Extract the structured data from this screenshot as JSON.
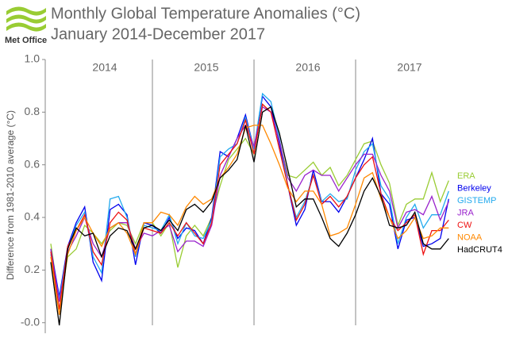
{
  "logo": "Met Office",
  "chart_data": {
    "type": "line",
    "title": "Monthly Global Temperature Anomalies (°C)",
    "subtitle": "January 2014-December 2017",
    "y_label": "Difference from 1981-2010 average (°C)",
    "year_labels": [
      "2014",
      "2015",
      "2016",
      "2017"
    ],
    "ylim": [
      -0.04,
      1.0
    ],
    "yticks": [
      {
        "value": 1.0,
        "label": "1.0"
      },
      0.8,
      0.6,
      0.4,
      0.2,
      {
        "value": 0,
        "label": "-0.0"
      }
    ],
    "legend": "right",
    "series": [
      {
        "name": "ERA",
        "color": "#99cc33",
        "values": [
          0.3,
          0.08,
          0.25,
          0.28,
          0.37,
          0.34,
          0.3,
          0.35,
          0.38,
          0.37,
          0.3,
          0.38,
          0.38,
          0.33,
          0.38,
          0.21,
          0.33,
          0.37,
          0.33,
          0.4,
          0.52,
          0.62,
          0.66,
          0.7,
          0.64,
          0.83,
          0.8,
          0.69,
          0.56,
          0.55,
          0.58,
          0.61,
          0.56,
          0.59,
          0.52,
          0.56,
          0.62,
          0.68,
          0.69,
          0.6,
          0.53,
          0.37,
          0.45,
          0.47,
          0.47,
          0.57,
          0.46,
          0.54
        ]
      },
      {
        "name": "Berkeley",
        "color": "#0000ee",
        "values": [
          0.28,
          0.1,
          0.29,
          0.38,
          0.44,
          0.23,
          0.16,
          0.43,
          0.45,
          0.41,
          0.22,
          0.38,
          0.37,
          0.34,
          0.4,
          0.32,
          0.36,
          0.35,
          0.3,
          0.4,
          0.65,
          0.63,
          0.7,
          0.79,
          0.66,
          0.86,
          0.82,
          0.68,
          0.52,
          0.37,
          0.43,
          0.58,
          0.46,
          0.46,
          0.42,
          0.48,
          0.55,
          0.62,
          0.7,
          0.49,
          0.45,
          0.28,
          0.39,
          0.4,
          0.29,
          0.3,
          0.32,
          0.47
        ]
      },
      {
        "name": "GISTEMP",
        "color": "#22aaee",
        "values": [
          0.26,
          0.09,
          0.28,
          0.37,
          0.42,
          0.25,
          0.19,
          0.47,
          0.48,
          0.4,
          0.25,
          0.37,
          0.36,
          0.35,
          0.41,
          0.3,
          0.38,
          0.33,
          0.32,
          0.39,
          0.63,
          0.66,
          0.68,
          0.78,
          0.66,
          0.87,
          0.84,
          0.7,
          0.52,
          0.4,
          0.46,
          0.56,
          0.46,
          0.49,
          0.46,
          0.47,
          0.58,
          0.65,
          0.68,
          0.52,
          0.47,
          0.3,
          0.4,
          0.45,
          0.36,
          0.41,
          0.41,
          0.5
        ]
      },
      {
        "name": "JRA",
        "color": "#9922cc",
        "values": [
          0.28,
          0.08,
          0.27,
          0.33,
          0.4,
          0.3,
          0.25,
          0.36,
          0.38,
          0.38,
          0.28,
          0.34,
          0.33,
          0.35,
          0.37,
          0.27,
          0.31,
          0.31,
          0.29,
          0.37,
          0.56,
          0.63,
          0.7,
          0.75,
          0.67,
          0.82,
          0.8,
          0.69,
          0.55,
          0.5,
          0.56,
          0.58,
          0.56,
          0.56,
          0.5,
          0.55,
          0.6,
          0.64,
          0.64,
          0.56,
          0.5,
          0.36,
          0.42,
          0.43,
          0.41,
          0.48,
          0.39,
          0.46
        ]
      },
      {
        "name": "CW",
        "color": "#ee1111",
        "values": [
          0.27,
          0.05,
          0.29,
          0.35,
          0.41,
          0.27,
          0.22,
          0.38,
          0.42,
          0.39,
          0.26,
          0.36,
          0.35,
          0.34,
          0.38,
          0.33,
          0.38,
          0.34,
          0.3,
          0.38,
          0.6,
          0.64,
          0.68,
          0.77,
          0.64,
          0.83,
          0.8,
          0.66,
          0.52,
          0.39,
          0.45,
          0.56,
          0.45,
          0.48,
          0.44,
          0.48,
          0.55,
          0.6,
          0.63,
          0.49,
          0.4,
          0.35,
          0.38,
          0.41,
          0.26,
          0.35,
          0.35,
          0.39
        ]
      },
      {
        "name": "NOAA",
        "color": "#ff8800",
        "values": [
          0.25,
          0.03,
          0.26,
          0.35,
          0.4,
          0.34,
          0.29,
          0.36,
          0.38,
          0.34,
          0.26,
          0.38,
          0.38,
          0.42,
          0.41,
          0.37,
          0.44,
          0.48,
          0.45,
          0.47,
          0.55,
          0.59,
          0.64,
          0.74,
          0.75,
          0.75,
          0.68,
          0.6,
          0.51,
          0.46,
          0.5,
          0.5,
          0.45,
          0.33,
          0.34,
          0.36,
          0.45,
          0.55,
          0.57,
          0.47,
          0.4,
          0.32,
          0.35,
          0.4,
          0.32,
          0.33,
          0.36,
          0.36
        ]
      },
      {
        "name": "HadCRUT4",
        "color": "#000000",
        "values": [
          0.23,
          -0.01,
          0.28,
          0.36,
          0.33,
          0.34,
          0.25,
          0.33,
          0.36,
          0.35,
          0.28,
          0.36,
          0.37,
          0.35,
          0.39,
          0.35,
          0.43,
          0.45,
          0.42,
          0.46,
          0.55,
          0.58,
          0.62,
          0.75,
          0.61,
          0.8,
          0.82,
          0.72,
          0.58,
          0.44,
          0.47,
          0.47,
          0.4,
          0.32,
          0.29,
          0.34,
          0.41,
          0.5,
          0.55,
          0.48,
          0.37,
          0.36,
          0.37,
          0.42,
          0.3,
          0.28,
          0.28,
          0.32
        ]
      }
    ]
  }
}
